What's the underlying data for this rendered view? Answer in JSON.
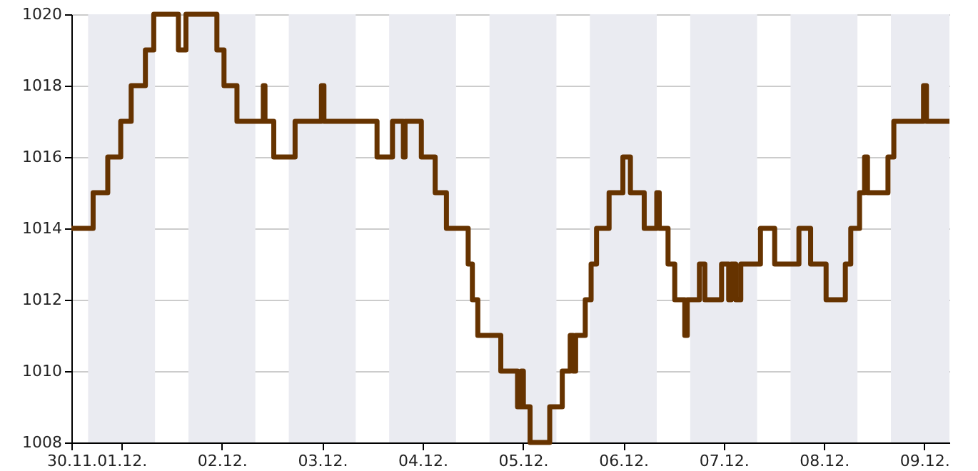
{
  "chart_data": {
    "type": "step",
    "x": [
      "--11-30T12:00",
      "--11-30T17:12",
      "--11-30T20:42",
      "--11-30T23:48",
      "--12-01T02:18",
      "--12-01T05:42",
      "--12-01T07:42",
      "--12-01T13:36",
      "--12-01T15:24",
      "--12-01T22:48",
      "--12-02T00:30",
      "--12-02T03:36",
      "--12-02T09:54",
      "--12-02T10:18",
      "--12-02T12:24",
      "--12-02T17:30",
      "--12-02T23:48",
      "--12-03T00:24",
      "--12-03T13:06",
      "--12-03T16:48",
      "--12-03T19:24",
      "--12-03T19:48",
      "--12-03T23:42",
      "--12-04T03:00",
      "--12-04T05:42",
      "--12-04T10:54",
      "--12-04T11:54",
      "--12-04T13:12",
      "--12-04T18:42",
      "--12-04T22:42",
      "--12-04T23:36",
      "--12-05T00:06",
      "--12-05T01:42",
      "--12-05T06:24",
      "--12-05T09:24",
      "--12-05T11:18",
      "--12-05T12:00",
      "--12-05T12:36",
      "--12-05T14:54",
      "--12-05T16:18",
      "--12-05T17:36",
      "--12-05T20:36",
      "--12-05T23:54",
      "--12-06T01:42",
      "--12-06T05:00",
      "--12-06T08:00",
      "--12-06T08:36",
      "--12-06T10:42",
      "--12-06T12:18",
      "--12-06T14:42",
      "--12-06T15:18",
      "--12-06T18:12",
      "--12-06T19:30",
      "--12-06T23:30",
      "--12-07T01:12",
      "--12-07T01:48",
      "--12-07T02:54",
      "--12-07T04:06",
      "--12-07T08:48",
      "--12-07T12:12",
      "--12-07T18:00",
      "--12-07T20:48",
      "--12-08T00:30",
      "--12-08T05:06",
      "--12-08T06:24",
      "--12-08T08:30",
      "--12-08T09:42",
      "--12-08T10:24",
      "--12-08T15:18",
      "--12-08T16:42",
      "--12-08T23:48",
      "--12-09T00:30",
      "--12-09T06:00"
    ],
    "series": [
      {
        "color": "#663300",
        "values": [
          1014,
          1015,
          1016,
          1017,
          1018,
          1019,
          1020,
          1019,
          1020,
          1019,
          1018,
          1017,
          1018,
          1017,
          1016,
          1017,
          1018,
          1017,
          1016,
          1017,
          1016,
          1017,
          1016,
          1015,
          1014,
          1013,
          1012,
          1011,
          1010,
          1009,
          1010,
          1009,
          1008,
          1009,
          1010,
          1011,
          1010,
          1011,
          1012,
          1013,
          1014,
          1015,
          1016,
          1015,
          1014,
          1015,
          1014,
          1013,
          1012,
          1011,
          1012,
          1013,
          1012,
          1013,
          1012,
          1013,
          1012,
          1013,
          1014,
          1013,
          1014,
          1013,
          1012,
          1013,
          1014,
          1015,
          1016,
          1015,
          1016,
          1017,
          1018,
          1017,
          1017
        ]
      }
    ],
    "xlim": [
      "--11-30T12:00",
      "--12-09T06:00"
    ],
    "xticks": [
      {
        "value": "--11-30T12:00",
        "label": "30.11."
      },
      {
        "value": "--12-01",
        "label": "01.12."
      },
      {
        "value": "--12-02",
        "label": "02.12."
      },
      {
        "value": "--12-03",
        "label": "03.12."
      },
      {
        "value": "--12-04",
        "label": "04.12."
      },
      {
        "value": "--12-05",
        "label": "05.12."
      },
      {
        "value": "--12-06",
        "label": "06.12."
      },
      {
        "value": "--12-07",
        "label": "07.12."
      },
      {
        "value": "--12-08",
        "label": "08.12."
      },
      {
        "value": "--12-09",
        "label": "09.12."
      }
    ],
    "ylim": [
      1008,
      1020
    ],
    "yticks": [
      1008,
      1010,
      1012,
      1014,
      1016,
      1018,
      1020
    ],
    "grid": true,
    "line_style": "solid",
    "bands": [
      {
        "axis": "x",
        "from": "--11-30T16:00",
        "to": "--12-01T08:00",
        "color": "#eaebf1"
      },
      {
        "axis": "x",
        "from": "--12-01T16:00",
        "to": "--12-02T08:00",
        "color": "#eaebf1"
      },
      {
        "axis": "x",
        "from": "--12-02T16:00",
        "to": "--12-03T08:00",
        "color": "#eaebf1"
      },
      {
        "axis": "x",
        "from": "--12-03T16:00",
        "to": "--12-04T08:00",
        "color": "#eaebf1"
      },
      {
        "axis": "x",
        "from": "--12-04T16:00",
        "to": "--12-05T08:00",
        "color": "#eaebf1"
      },
      {
        "axis": "x",
        "from": "--12-05T16:00",
        "to": "--12-06T08:00",
        "color": "#eaebf1"
      },
      {
        "axis": "x",
        "from": "--12-06T16:00",
        "to": "--12-07T08:00",
        "color": "#eaebf1"
      },
      {
        "axis": "x",
        "from": "--12-07T16:00",
        "to": "--12-08T08:00",
        "color": "#eaebf1"
      },
      {
        "axis": "x",
        "from": "--12-08T16:00",
        "to": "--12-09T06:00",
        "color": "#eaebf1"
      }
    ]
  }
}
